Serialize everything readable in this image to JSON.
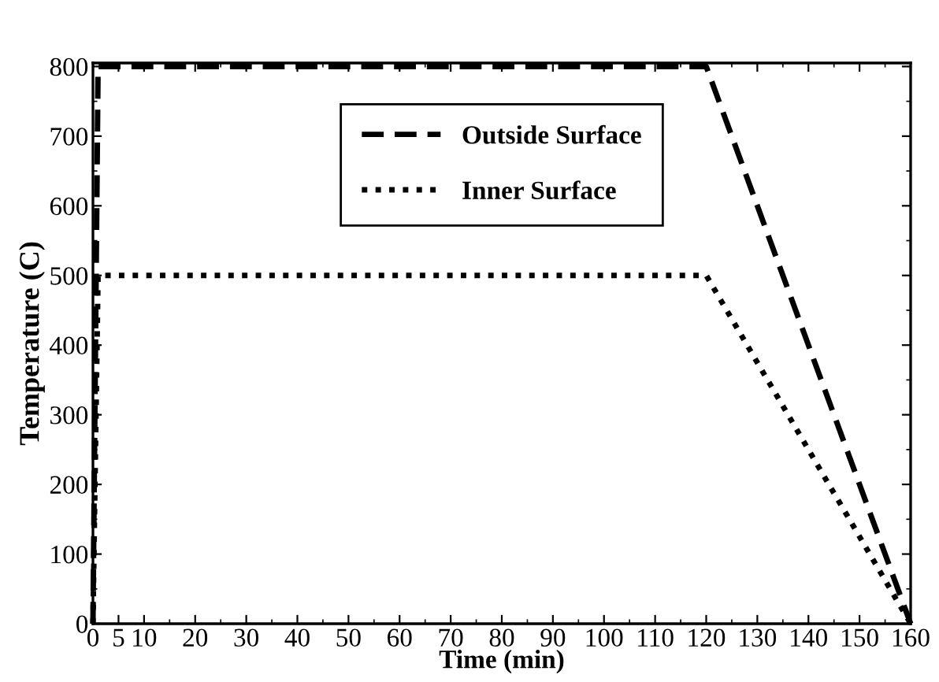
{
  "chart_data": {
    "type": "line",
    "xlabel": "Time (min)",
    "ylabel": "Temperature (C)",
    "series": [
      {
        "name": "Outside Surface",
        "color": "#000000",
        "line_style": "dashed",
        "x": [
          0,
          1,
          120,
          160
        ],
        "values": [
          0,
          800,
          800,
          0
        ]
      },
      {
        "name": "Inner Surface",
        "color": "#000000",
        "line_style": "dotted",
        "x": [
          0,
          1,
          120,
          160
        ],
        "values": [
          0,
          500,
          500,
          0
        ]
      }
    ],
    "xlim": [
      0,
      160
    ],
    "ylim": [
      0,
      805
    ],
    "xticks": [
      0,
      5,
      10,
      20,
      30,
      40,
      50,
      60,
      70,
      80,
      90,
      100,
      110,
      120,
      130,
      140,
      150,
      160
    ],
    "yticks": [
      0,
      100,
      200,
      300,
      400,
      500,
      600,
      700,
      800
    ],
    "grid": false,
    "legend": "top center"
  }
}
